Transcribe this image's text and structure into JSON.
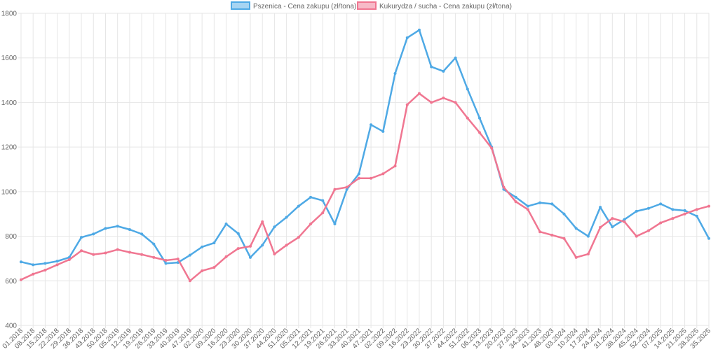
{
  "chart_data": {
    "type": "line",
    "title": "",
    "xlabel": "",
    "ylabel": "",
    "ylim": [
      400,
      1800
    ],
    "y_ticks": [
      400,
      600,
      800,
      1000,
      1200,
      1400,
      1600,
      1800
    ],
    "grid": true,
    "legend_position": "top-center",
    "categories": [
      "01.2018",
      "08.2018",
      "15.2018",
      "22.2018",
      "29.2018",
      "36.2018",
      "43.2018",
      "50.2018",
      "05.2019",
      "12.2019",
      "19.2019",
      "26.2019",
      "33.2019",
      "40.2019",
      "47.2019",
      "02.2020",
      "09.2020",
      "16.2020",
      "23.2020",
      "30.2020",
      "37.2020",
      "44.2020",
      "51.2020",
      "05.2021",
      "12.2021",
      "19.2021",
      "26.2021",
      "33.2021",
      "40.2021",
      "47.2021",
      "02.2022",
      "09.2022",
      "16.2022",
      "23.2022",
      "30.2022",
      "37.2022",
      "44.2022",
      "51.2022",
      "06.2023",
      "13.2023",
      "20.2023",
      "27.2023",
      "34.2023",
      "41.2023",
      "48.2023",
      "03.2024",
      "10.2024",
      "17.2024",
      "24.2024",
      "31.2024",
      "38.2024",
      "45.2024",
      "52.2024",
      "07.2025",
      "14.2025",
      "21.2025",
      "28.2025",
      "35.2025"
    ],
    "series": [
      {
        "name": "Pszenica - Cena zakupu (zł/tona)",
        "color": "#4ea9e5",
        "values": [
          685,
          672,
          678,
          688,
          705,
          795,
          810,
          835,
          845,
          830,
          810,
          765,
          678,
          682,
          715,
          752,
          770,
          855,
          812,
          705,
          760,
          842,
          885,
          935,
          975,
          960,
          855,
          1010,
          1080,
          1300,
          1270,
          1530,
          1690,
          1725,
          1560,
          1540,
          1600,
          1460,
          1330,
          1200,
          1010,
          975,
          935,
          950,
          945,
          900,
          835,
          800,
          930,
          842,
          875,
          912,
          925,
          945,
          920,
          915,
          890,
          790
        ]
      },
      {
        "name": "Kukurydza / sucha - Cena zakupu (zł/tona)",
        "color": "#f07691",
        "values": [
          605,
          630,
          648,
          672,
          695,
          735,
          718,
          725,
          740,
          728,
          718,
          705,
          692,
          698,
          600,
          645,
          660,
          708,
          745,
          755,
          865,
          720,
          760,
          795,
          855,
          905,
          1010,
          1020,
          1060,
          1060,
          1080,
          1115,
          1390,
          1440,
          1400,
          1420,
          1400,
          1330,
          1265,
          1195,
          1020,
          955,
          920,
          820,
          805,
          790,
          705,
          720,
          840,
          880,
          865,
          800,
          825,
          860,
          880,
          900,
          920,
          935
        ]
      }
    ]
  },
  "colors": {
    "grid": "#e6e6e6",
    "tick_text": "#666666"
  }
}
